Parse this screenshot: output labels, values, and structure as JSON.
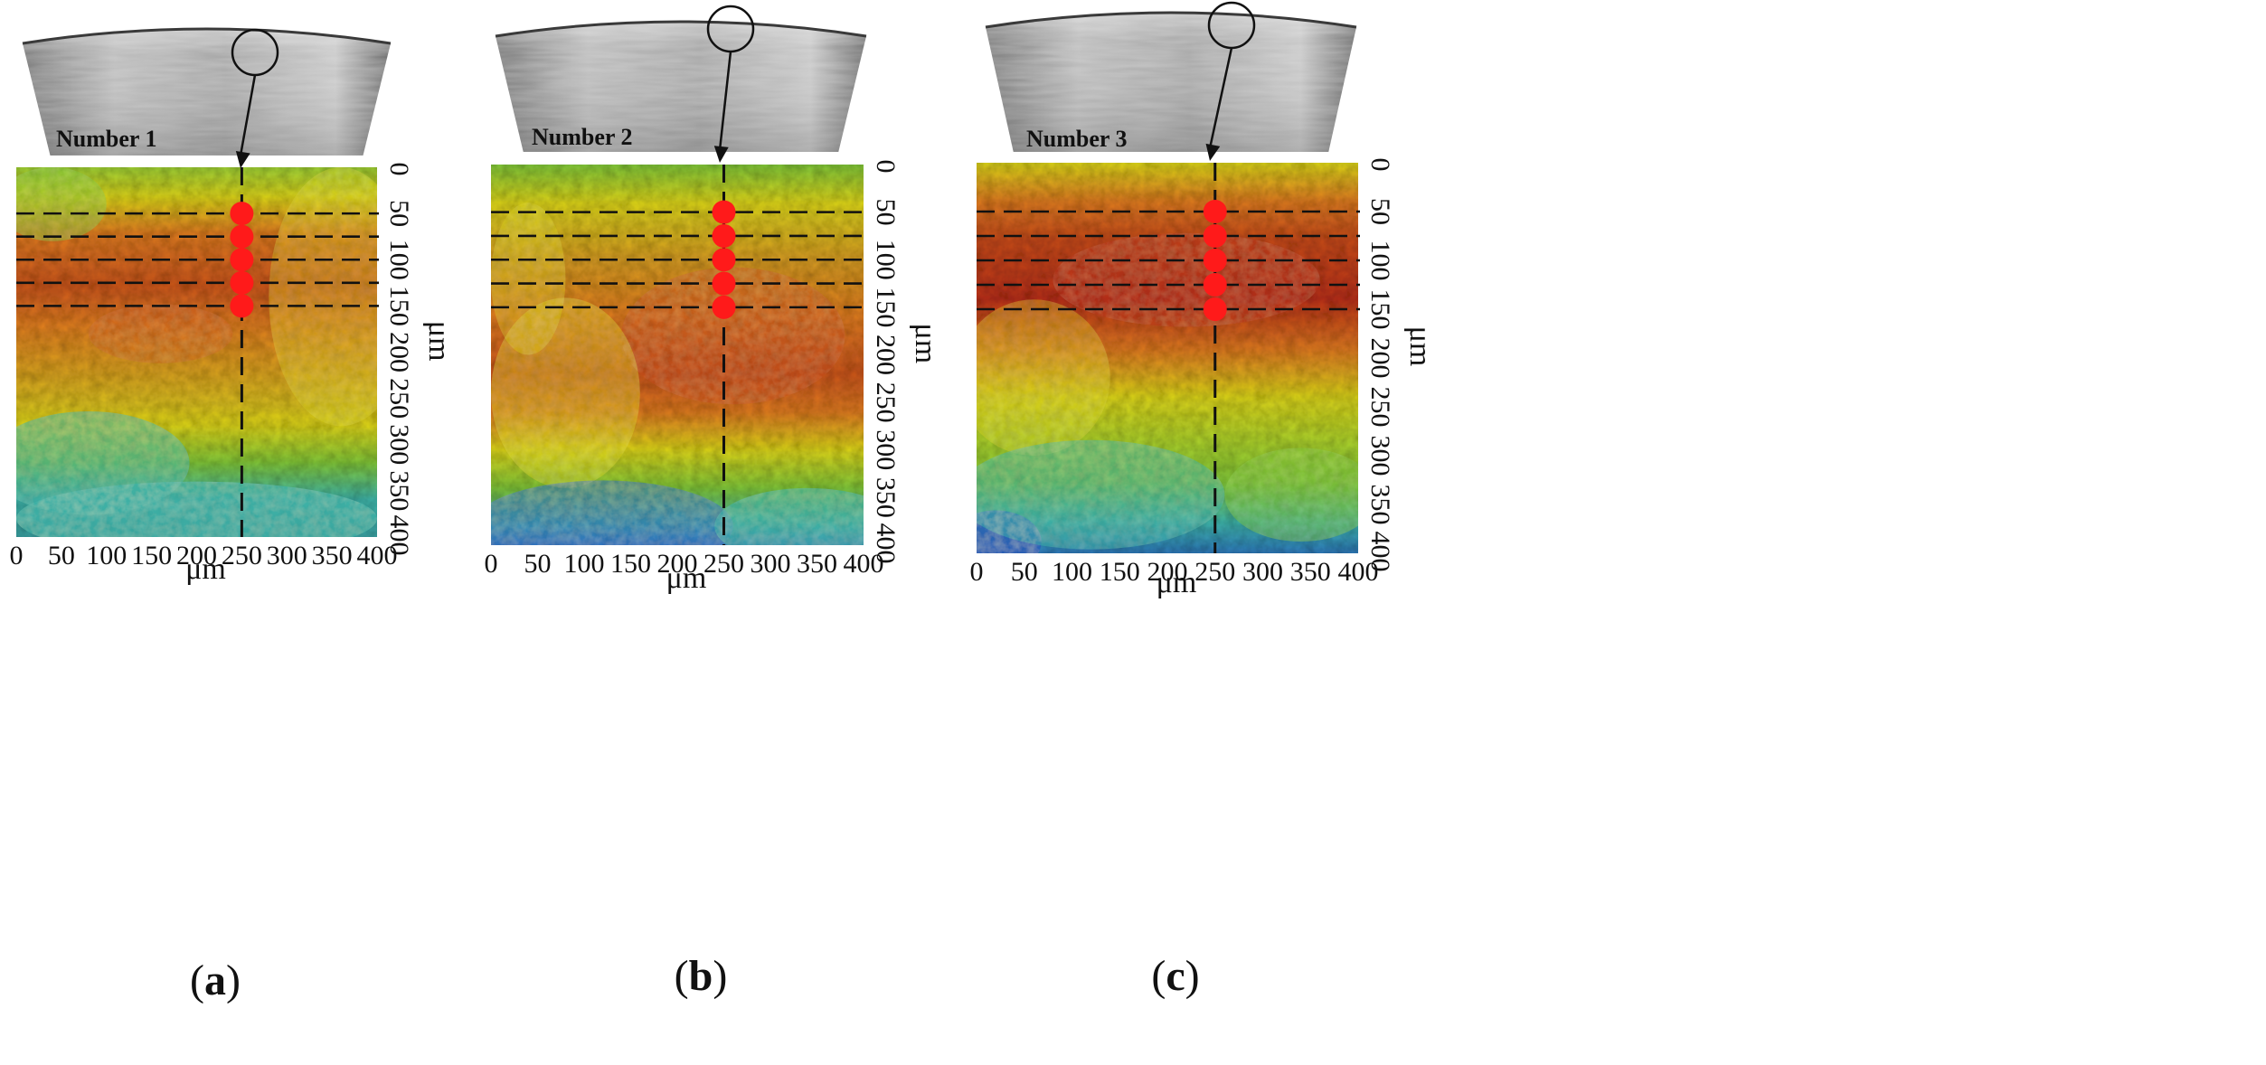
{
  "panels": [
    {
      "id": "a",
      "sample_label": "Number 1",
      "panel_label_open": "(",
      "panel_label_letter": "a",
      "panel_label_close": ")"
    },
    {
      "id": "b",
      "sample_label": "Number 2",
      "panel_label_open": "(",
      "panel_label_letter": "b",
      "panel_label_close": ")"
    },
    {
      "id": "c",
      "sample_label": "Number 3",
      "panel_label_open": "(",
      "panel_label_letter": "c",
      "panel_label_close": ")"
    }
  ],
  "axes": {
    "x_label": "μm",
    "y_label": "μm",
    "x_range": [
      0,
      400
    ],
    "y_range": [
      0,
      400
    ],
    "x_ticks": [
      "0",
      "50",
      "100",
      "150",
      "200",
      "250",
      "300",
      "350",
      "400"
    ],
    "y_ticks": [
      "0",
      "50",
      "100",
      "150",
      "200",
      "250",
      "300",
      "350",
      "400"
    ]
  },
  "measurement": {
    "vertical_line_x": 250,
    "dash_line_depths": [
      50,
      75,
      100,
      125,
      150
    ],
    "point_depths": [
      50,
      75,
      100,
      125,
      150
    ],
    "point_color": "#ff1a1a"
  },
  "colormap": {
    "deep_red": "#b8321c",
    "orange": "#dc7a22",
    "yellow": "#d9d21e",
    "green": "#7fc43a",
    "cyan": "#3fb3a8",
    "blue": "#2a5cb8"
  }
}
